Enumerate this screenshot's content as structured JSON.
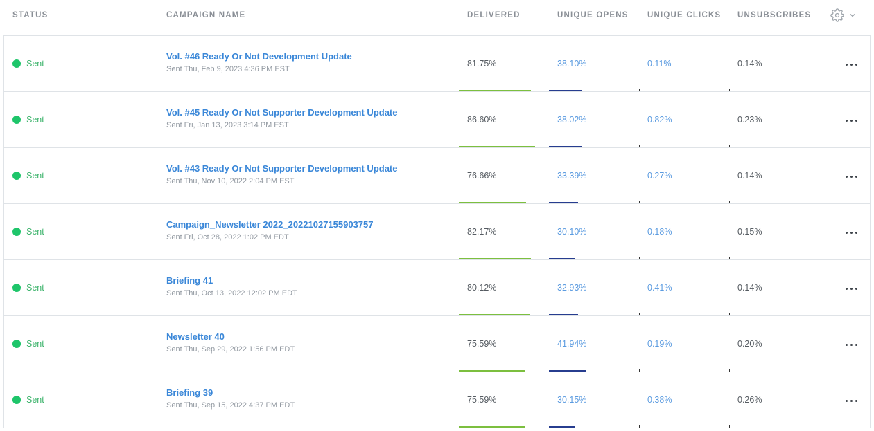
{
  "columns": {
    "status": "STATUS",
    "campaign_name": "CAMPAIGN NAME",
    "delivered": "DELIVERED",
    "unique_opens": "UNIQUE OPENS",
    "unique_clicks": "UNIQUE CLICKS",
    "unsubscribes": "UNSUBSCRIBES"
  },
  "icons": {
    "settings": "gear-icon",
    "settings_caret": "chevron-down-icon",
    "row_menu": "more-horizontal-icon"
  },
  "colors": {
    "status_dot": "#1ec56a",
    "link": "#3a87d8",
    "delivered_bar": "#7cbf3f",
    "opens_bar": "#273d8f"
  },
  "rows": [
    {
      "status": "Sent",
      "name": "Vol. #46 Ready Or Not Development Update",
      "sent": "Sent Thu, Feb 9, 2023 4:36 PM EST",
      "delivered": "81.75%",
      "opens": "38.10%",
      "clicks": "0.11%",
      "unsubscribes": "0.14%",
      "delivered_level": 0.8175,
      "opens_level": 0.381
    },
    {
      "status": "Sent",
      "name": "Vol. #45 Ready Or Not Supporter Development Update",
      "sent": "Sent Fri, Jan 13, 2023 3:14 PM EST",
      "delivered": "86.60%",
      "opens": "38.02%",
      "clicks": "0.82%",
      "unsubscribes": "0.23%",
      "delivered_level": 0.866,
      "opens_level": 0.3802
    },
    {
      "status": "Sent",
      "name": "Vol. #43 Ready Or Not Supporter Development Update",
      "sent": "Sent Thu, Nov 10, 2022 2:04 PM EST",
      "delivered": "76.66%",
      "opens": "33.39%",
      "clicks": "0.27%",
      "unsubscribes": "0.14%",
      "delivered_level": 0.7666,
      "opens_level": 0.3339
    },
    {
      "status": "Sent",
      "name": "Campaign_Newsletter 2022_20221027155903757",
      "sent": "Sent Fri, Oct 28, 2022 1:02 PM EDT",
      "delivered": "82.17%",
      "opens": "30.10%",
      "clicks": "0.18%",
      "unsubscribes": "0.15%",
      "delivered_level": 0.8217,
      "opens_level": 0.301
    },
    {
      "status": "Sent",
      "name": "Briefing 41",
      "sent": "Sent Thu, Oct 13, 2022 12:02 PM EDT",
      "delivered": "80.12%",
      "opens": "32.93%",
      "clicks": "0.41%",
      "unsubscribes": "0.14%",
      "delivered_level": 0.8012,
      "opens_level": 0.3293
    },
    {
      "status": "Sent",
      "name": "Newsletter 40",
      "sent": "Sent Thu, Sep 29, 2022 1:56 PM EDT",
      "delivered": "75.59%",
      "opens": "41.94%",
      "clicks": "0.19%",
      "unsubscribes": "0.20%",
      "delivered_level": 0.7559,
      "opens_level": 0.4194
    },
    {
      "status": "Sent",
      "name": "Briefing 39",
      "sent": "Sent Thu, Sep 15, 2022 4:37 PM EDT",
      "delivered": "75.59%",
      "opens": "30.15%",
      "clicks": "0.38%",
      "unsubscribes": "0.26%",
      "delivered_level": 0.7559,
      "opens_level": 0.3015
    }
  ]
}
